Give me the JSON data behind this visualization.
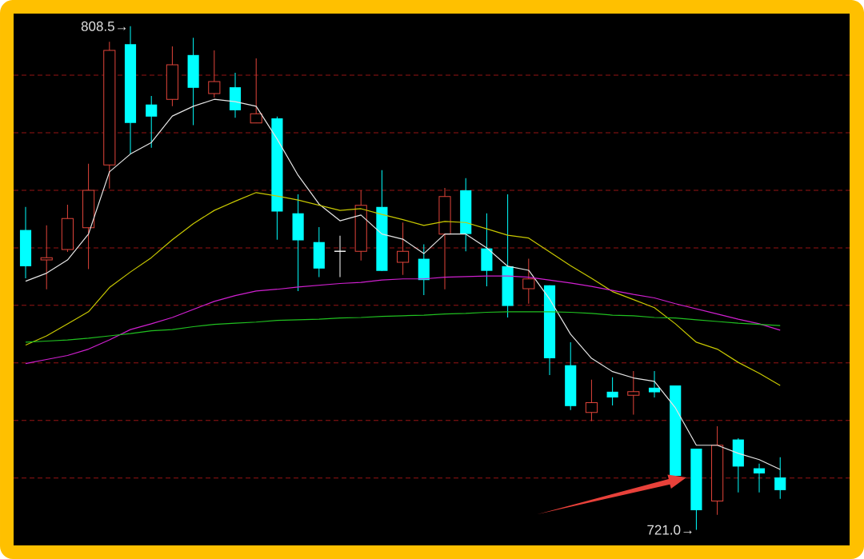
{
  "chart_data": {
    "type": "candlestick",
    "categories": [
      null,
      null,
      null,
      null,
      null,
      null,
      null,
      null,
      null,
      null,
      null,
      null,
      null,
      null,
      null,
      null,
      null,
      null,
      null,
      null,
      null,
      null,
      null,
      null,
      null,
      null,
      null,
      null,
      null,
      null,
      null,
      null,
      null,
      null,
      null,
      null,
      null
    ],
    "ohlc": [
      [
        773.1,
        777.1,
        764.7,
        766.8
      ],
      [
        767.9,
        773.9,
        762.8,
        768.3
      ],
      [
        769.7,
        777.5,
        769.3,
        775.1
      ],
      [
        773.5,
        784.6,
        766.3,
        780.0
      ],
      [
        784.4,
        805.8,
        780.3,
        804.3
      ],
      [
        805.4,
        808.5,
        786.3,
        791.7
      ],
      [
        794.9,
        796.4,
        787.4,
        792.8
      ],
      [
        795.8,
        805.0,
        794.6,
        801.8
      ],
      [
        803.5,
        806.5,
        791.3,
        797.8
      ],
      [
        796.8,
        804.3,
        796.1,
        798.9
      ],
      [
        797.9,
        800.4,
        792.6,
        793.9
      ],
      [
        791.7,
        802.9,
        791.7,
        793.3
      ],
      [
        792.5,
        792.8,
        771.4,
        776.3
      ],
      [
        776.0,
        779.3,
        762.5,
        771.3
      ],
      [
        771.0,
        773.6,
        764.9,
        766.4
      ],
      [
        769.4,
        772.1,
        764.9,
        769.4
      ],
      [
        769.4,
        780.0,
        767.8,
        777.4
      ],
      [
        777.1,
        783.5,
        766.0,
        766.0
      ],
      [
        767.5,
        774.4,
        765.3,
        769.4
      ],
      [
        768.1,
        770.6,
        761.8,
        764.4
      ],
      [
        772.4,
        780.4,
        762.8,
        778.9
      ],
      [
        780.0,
        782.1,
        769.4,
        772.4
      ],
      [
        769.9,
        776.0,
        763.3,
        766.0
      ],
      [
        766.8,
        779.3,
        757.9,
        759.9
      ],
      [
        762.9,
        768.1,
        760.3,
        764.6
      ],
      [
        763.5,
        763.5,
        747.9,
        750.8
      ],
      [
        749.6,
        753.6,
        741.8,
        742.5
      ],
      [
        741.4,
        747.1,
        739.9,
        743.1
      ],
      [
        745.0,
        747.5,
        742.6,
        744.0
      ],
      [
        744.4,
        748.6,
        741.0,
        745.0
      ],
      [
        745.7,
        748.6,
        744.0,
        744.9
      ],
      [
        746.1,
        746.1,
        730.4,
        730.4
      ],
      [
        735.1,
        735.1,
        721.0,
        724.4
      ],
      [
        726.0,
        739.0,
        723.6,
        735.7
      ],
      [
        736.7,
        736.9,
        727.5,
        732.0
      ],
      [
        731.7,
        732.5,
        727.5,
        730.8
      ],
      [
        730.1,
        733.6,
        726.4,
        727.9
      ]
    ],
    "colors": [
      "#00ffff",
      "#e0443a",
      "#e0443a",
      "#e0443a",
      "#e0443a",
      "#00ffff",
      "#00ffff",
      "#e0443a",
      "#00ffff",
      "#e0443a",
      "#00ffff",
      "#e0443a",
      "#00ffff",
      "#00ffff",
      "#00ffff",
      "#ffffff",
      "#e0443a",
      "#00ffff",
      "#e0443a",
      "#00ffff",
      "#e0443a",
      "#00ffff",
      "#00ffff",
      "#00ffff",
      "#e0443a",
      "#00ffff",
      "#00ffff",
      "#e0443a",
      "#00ffff",
      "#e0443a",
      "#00ffff",
      "#00ffff",
      "#00ffff",
      "#e0443a",
      "#00ffff",
      "#00ffff",
      "#00ffff"
    ],
    "series": [
      {
        "type": "line",
        "color": "#e6e6e6",
        "values": [
          764.2,
          765.6,
          767.9,
          772.4,
          783.2,
          786.3,
          788.3,
          792.9,
          794.6,
          795.8,
          795.4,
          794.6,
          788.9,
          782.6,
          777.6,
          774.7,
          775.7,
          772.4,
          771.5,
          769.0,
          772.4,
          772.4,
          770.0,
          766.8,
          766.1,
          761.1,
          755.0,
          750.8,
          748.5,
          747.4,
          746.8,
          742.2,
          735.7,
          735.7,
          734.3,
          733.2,
          731.5
        ]
      },
      {
        "type": "line",
        "color": "#c8c800",
        "values": [
          753.1,
          754.7,
          756.8,
          758.9,
          763.1,
          765.8,
          768.3,
          771.4,
          774.2,
          776.5,
          778.1,
          779.6,
          779.0,
          778.3,
          777.4,
          776.5,
          776.8,
          775.8,
          774.9,
          773.9,
          774.6,
          774.4,
          773.3,
          772.2,
          771.7,
          769.3,
          766.9,
          764.7,
          762.4,
          761.0,
          759.6,
          756.8,
          753.6,
          752.4,
          750.1,
          748.2,
          746.1
        ]
      },
      {
        "type": "line",
        "color": "#d020d0",
        "values": [
          749.9,
          750.6,
          751.3,
          752.4,
          754.0,
          755.8,
          756.8,
          757.9,
          759.3,
          760.7,
          761.7,
          762.5,
          762.8,
          763.2,
          763.5,
          763.8,
          764.0,
          764.4,
          764.6,
          764.6,
          764.9,
          765.0,
          765.1,
          765.1,
          764.9,
          764.4,
          763.9,
          763.3,
          762.6,
          761.9,
          761.3,
          760.3,
          759.4,
          758.5,
          757.6,
          756.8,
          755.7
        ]
      },
      {
        "type": "line",
        "color": "#20c020",
        "values": [
          753.6,
          753.8,
          754.0,
          754.3,
          754.7,
          755.1,
          755.6,
          755.8,
          756.3,
          756.7,
          756.9,
          757.1,
          757.4,
          757.5,
          757.6,
          757.8,
          757.9,
          758.1,
          758.2,
          758.3,
          758.5,
          758.6,
          758.8,
          758.9,
          758.9,
          758.9,
          758.8,
          758.6,
          758.3,
          758.2,
          757.9,
          757.8,
          757.5,
          757.2,
          756.9,
          756.7,
          756.5
        ]
      }
    ],
    "ylim": [
      718.3,
      810.7
    ],
    "yticks": [
      {
        "value": 730,
        "label": null
      },
      {
        "value": 740,
        "label": null
      },
      {
        "value": 750,
        "label": null
      },
      {
        "value": 760,
        "label": null
      },
      {
        "value": 770,
        "label": null
      },
      {
        "value": 780,
        "label": null
      },
      {
        "value": 790,
        "label": null
      },
      {
        "value": 800,
        "label": null
      }
    ],
    "grid": "y",
    "annotations": [
      "808.5→",
      "721.0→"
    ]
  }
}
